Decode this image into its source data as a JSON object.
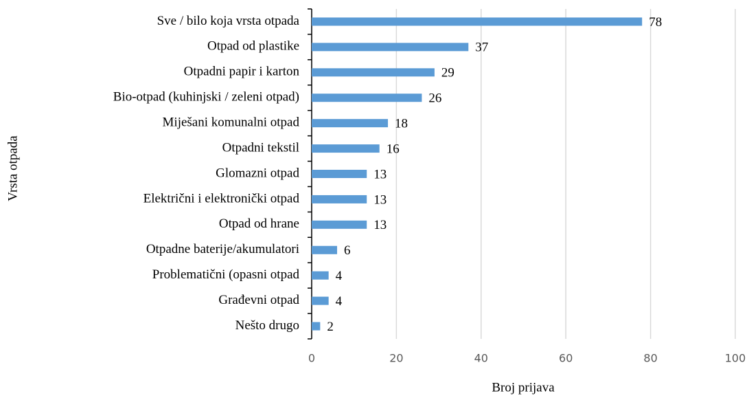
{
  "chart_data": {
    "type": "bar",
    "orientation": "horizontal",
    "xlabel": "Broj prijava",
    "ylabel": "Vrsta otpada",
    "categories": [
      "Sve / bilo koja vrsta otpada",
      "Otpad od plastike",
      "Otpadni papir i karton",
      "Bio-otpad (kuhinjski / zeleni otpad)",
      "Miješani komunalni otpad",
      "Otpadni tekstil",
      "Glomazni otpad",
      "Električni i elektronički otpad",
      "Otpad od hrane",
      "Otpadne baterije/akumulatori",
      "Problematični (opasni otpad",
      "Građevni otpad",
      "Nešto drugo"
    ],
    "values": [
      78,
      37,
      29,
      26,
      18,
      16,
      13,
      13,
      13,
      6,
      4,
      4,
      2
    ],
    "color": "#5b9bd5",
    "xlim": [
      0,
      100
    ],
    "xticks": [
      0,
      20,
      40,
      60,
      80,
      100
    ],
    "grid": true
  }
}
